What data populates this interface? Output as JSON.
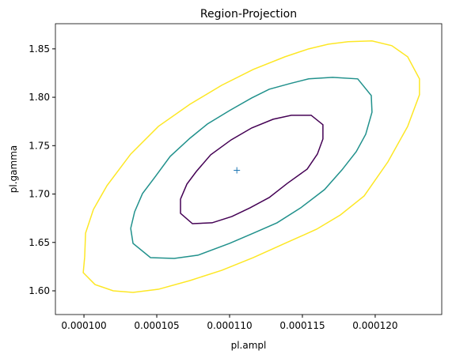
{
  "chart_data": {
    "type": "contour",
    "title": "Region-Projection",
    "xlabel": "pl.ampl",
    "ylabel": "pl.gamma",
    "xlim": [
      9.804e-05,
      0.00012457
    ],
    "ylim": [
      1.5755,
      1.876
    ],
    "xticks": [
      {
        "value": 0.0001,
        "label": "0.000100"
      },
      {
        "value": 0.000105,
        "label": "0.000105"
      },
      {
        "value": 0.00011,
        "label": "0.000110"
      },
      {
        "value": 0.000115,
        "label": "0.000115"
      },
      {
        "value": 0.00012,
        "label": "0.000120"
      }
    ],
    "yticks": [
      {
        "value": 1.6,
        "label": "1.60"
      },
      1.65,
      {
        "value": 1.7,
        "label": "1.70"
      },
      1.75,
      {
        "value": 1.8,
        "label": "1.80"
      },
      1.85
    ],
    "grid": false,
    "series": [
      {
        "color": "#440154",
        "x": [
          0.00010663,
          0.00010663,
          0.00010745,
          0.0001088,
          0.00011016,
          0.00011141,
          0.00011272,
          0.00011397,
          0.00011533,
          0.00011603,
          0.00011641,
          0.00011641,
          0.0001156,
          0.00011424,
          0.00011299,
          0.00011152,
          0.00011011,
          0.0001087,
          0.00010772,
          0.00010707,
          0.00010663
        ],
        "y": [
          1.6948,
          1.6801,
          1.6694,
          1.6703,
          1.6768,
          1.6858,
          1.6964,
          1.7111,
          1.7258,
          1.7413,
          1.7569,
          1.7716,
          1.7814,
          1.7814,
          1.7773,
          1.7683,
          1.756,
          1.7405,
          1.7234,
          1.7103,
          1.6948
        ]
      },
      {
        "color": "#21918c",
        "x": [
          0.00010321,
          0.00010337,
          0.00010457,
          0.0001062,
          0.00010783,
          0.00011,
          0.00011163,
          0.00011326,
          0.00011489,
          0.00011652,
          0.00011772,
          0.0001187,
          0.00011935,
          0.00011978,
          0.00011973,
          0.0001188,
          0.00011707,
          0.00011543,
          0.00011413,
          0.00011272,
          0.00011152,
          0.00011,
          0.00010848,
          0.00010728,
          0.00010592,
          0.00010484,
          0.00010402,
          0.00010348,
          0.00010321
        ],
        "y": [
          1.6645,
          1.649,
          1.6343,
          1.6335,
          1.6368,
          1.649,
          1.6596,
          1.6703,
          1.6858,
          1.7046,
          1.725,
          1.7438,
          1.7618,
          1.7846,
          1.8018,
          1.819,
          1.8206,
          1.819,
          1.8141,
          1.8083,
          1.7993,
          1.7863,
          1.7724,
          1.7577,
          1.7389,
          1.7168,
          1.7005,
          1.6817,
          1.6645
        ]
      },
      {
        "color": "#fde725",
        "x": [
          0.00010005,
          9.995e-05,
          0.00010076,
          0.00010201,
          0.00010337,
          0.00010511,
          0.00010728,
          0.00010946,
          0.00011163,
          0.0001138,
          0.00011598,
          0.00011761,
          0.00011924,
          0.00012087,
          0.00012223,
          0.00012304,
          0.00012304,
          0.00012223,
          0.00012114,
          0.00011978,
          0.00011815,
          0.00011679,
          0.00011543,
          0.0001138,
          0.00011163,
          0.00010946,
          0.00010728,
          0.00010511,
          0.00010321,
          0.00010158,
          0.00010065,
          0.00010011,
          0.00010005
        ],
        "y": [
          1.6351,
          1.6188,
          1.6065,
          1.6,
          1.5984,
          1.6016,
          1.6106,
          1.6212,
          1.6343,
          1.649,
          1.6637,
          1.6784,
          1.698,
          1.7332,
          1.7699,
          1.8026,
          1.819,
          1.8418,
          1.8533,
          1.8582,
          1.8574,
          1.8549,
          1.85,
          1.8418,
          1.8288,
          1.8124,
          1.7928,
          1.7699,
          1.7413,
          1.7087,
          1.6841,
          1.6596,
          1.6351
        ]
      }
    ],
    "marker": {
      "x": 0.0001105,
      "y": 1.7245,
      "color": "#1f77b4"
    }
  }
}
